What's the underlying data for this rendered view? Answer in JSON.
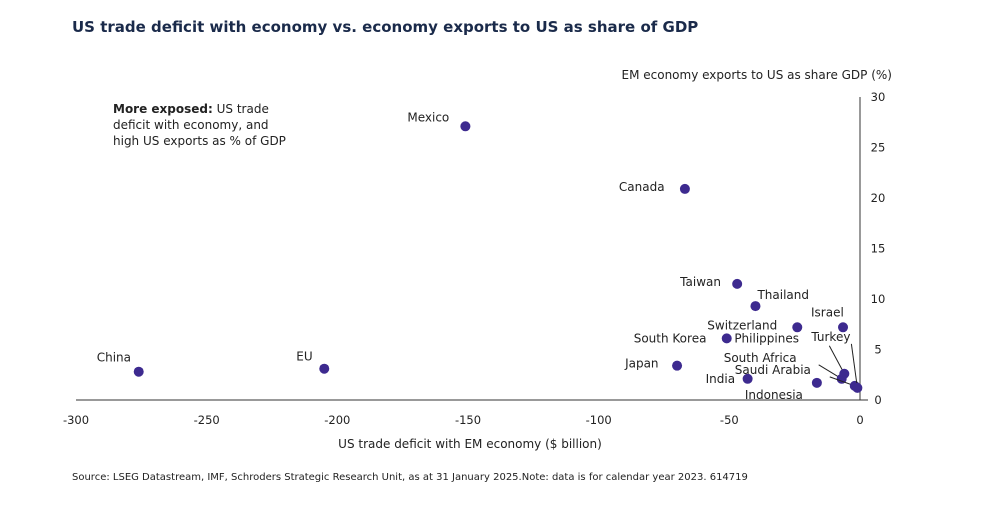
{
  "chart_data": {
    "type": "scatter",
    "title": "US trade deficit with economy vs. economy exports to US as share of GDP",
    "xlabel": "US trade deficit with EM economy ($ billion)",
    "ylabel": "EM economy exports to US as share GDP (%)",
    "xlim": [
      -300,
      0
    ],
    "ylim": [
      0,
      30
    ],
    "xticks": [
      -300,
      -250,
      -200,
      -150,
      -100,
      -50,
      0
    ],
    "yticks": [
      0,
      5,
      10,
      15,
      20,
      25,
      30
    ],
    "grid": false,
    "point_color": "#3d2a8f",
    "annotation": {
      "bold": "More exposed:",
      "lines": [
        " US trade",
        "deficit with economy, and",
        "high US exports as % of GDP"
      ]
    },
    "points": [
      {
        "label": "China",
        "x": -276,
        "y": 2.8
      },
      {
        "label": "EU",
        "x": -205,
        "y": 3.1
      },
      {
        "label": "Mexico",
        "x": -151,
        "y": 27.1
      },
      {
        "label": "Canada",
        "x": -67,
        "y": 20.9
      },
      {
        "label": "Taiwan",
        "x": -47,
        "y": 11.5
      },
      {
        "label": "Thailand",
        "x": -40,
        "y": 9.3
      },
      {
        "label": "Switzerland",
        "x": -24,
        "y": 7.2
      },
      {
        "label": "Israel",
        "x": -6.5,
        "y": 7.2
      },
      {
        "label": "South Korea",
        "x": -51,
        "y": 6.1
      },
      {
        "label": "Japan",
        "x": -70,
        "y": 3.4
      },
      {
        "label": "India",
        "x": -43,
        "y": 2.1
      },
      {
        "label": "Indonesia",
        "x": -16.5,
        "y": 1.7
      },
      {
        "label": "Philippines",
        "x": -6,
        "y": 2.6
      },
      {
        "label": "South Africa",
        "x": -7,
        "y": 2.1
      },
      {
        "label": "Saudi Arabia",
        "x": -2,
        "y": 1.4
      },
      {
        "label": "Turkey",
        "x": -1,
        "y": 1.2
      }
    ],
    "source": "Source: LSEG Datastream, IMF, Schroders Strategic Research Unit, as at 31 January 2025.Note: data is for calendar year 2023. 614719"
  }
}
